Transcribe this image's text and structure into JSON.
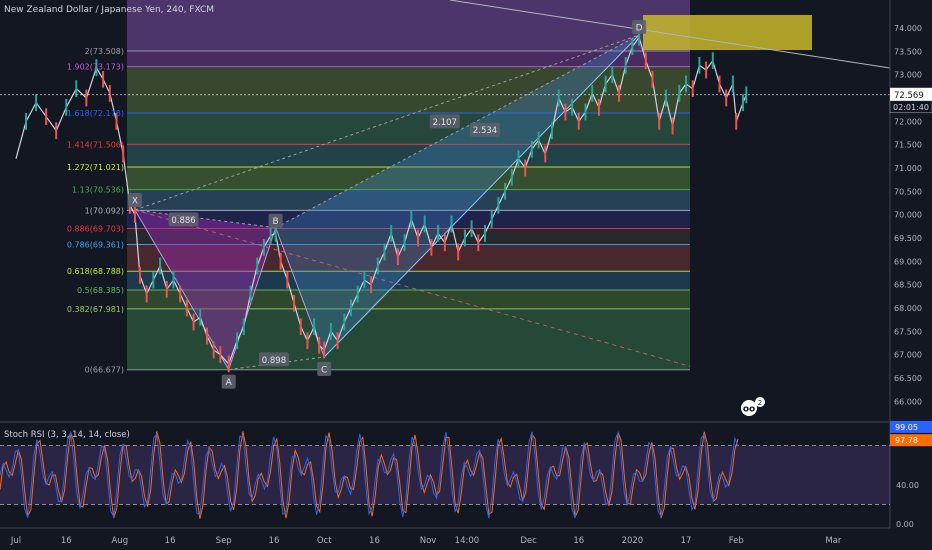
{
  "header": {
    "title": "New Zealand Dollar / Japanese Yen, 240, FXCM"
  },
  "chart_data": {
    "type": "line",
    "title": "New Zealand Dollar / Japanese Yen, 240, FXCM",
    "price_axis": {
      "range": [
        65.6,
        74.6
      ],
      "ticks": [
        "66.000",
        "66.500",
        "67.000",
        "67.500",
        "68.000",
        "68.500",
        "69.000",
        "69.500",
        "70.000",
        "70.500",
        "71.000",
        "71.500",
        "72.000",
        "72.500",
        "73.000",
        "73.500",
        "74.000"
      ]
    },
    "last_price": "72.569",
    "countdown": "02:01:40",
    "time_axis": {
      "labels": [
        {
          "t": "Jul",
          "d": 0
        },
        {
          "t": "16",
          "d": 15
        },
        {
          "t": "Aug",
          "d": 31
        },
        {
          "t": "16",
          "d": 46
        },
        {
          "t": "Sep",
          "d": 62
        },
        {
          "t": "16",
          "d": 77
        },
        {
          "t": "Oct",
          "d": 92
        },
        {
          "t": "16",
          "d": 107
        },
        {
          "t": "Nov",
          "d": 123
        },
        {
          "t": "14:00",
          "d": 134.6
        },
        {
          "t": "Dec",
          "d": 153
        },
        {
          "t": "16",
          "d": 168
        },
        {
          "t": "2020",
          "d": 184
        },
        {
          "t": "17",
          "d": 200
        },
        {
          "t": "Feb",
          "d": 215
        },
        {
          "t": "Mar",
          "d": 244
        }
      ]
    },
    "fib_levels": [
      {
        "label": "2(73.508)",
        "value": 73.508,
        "color": "#9aa0a6"
      },
      {
        "label": "1.902(73.173)",
        "value": 73.173,
        "color": "#c05fd6"
      },
      {
        "label": "1.618(72.178)",
        "value": 72.178,
        "color": "#2962ff"
      },
      {
        "label": "1.414(71.506)",
        "value": 71.506,
        "color": "#f23645"
      },
      {
        "label": "1.272(71.021)",
        "value": 71.021,
        "color": "#c8e63c"
      },
      {
        "label": "1.13(70.536)",
        "value": 70.536,
        "color": "#4caf50"
      },
      {
        "label": "1(70.092)",
        "value": 70.092,
        "color": "#b2b5be"
      },
      {
        "label": "0.886(69.703)",
        "value": 69.703,
        "color": "#f23645"
      },
      {
        "label": "0.786(69.361)",
        "value": 69.361,
        "color": "#42a5f5"
      },
      {
        "label": "0.618(68.788)",
        "value": 68.788,
        "color": "#c8e63c"
      },
      {
        "label": "0.5(68.385)",
        "value": 68.385,
        "color": "#66bb6a"
      },
      {
        "label": "0.382(67.981)",
        "value": 67.981,
        "color": "#9ccc65"
      },
      {
        "label": "0(66.677)",
        "value": 66.677,
        "color": "#9aa0a6"
      }
    ],
    "pattern_points": [
      {
        "label": "X",
        "d": 35.5,
        "price": 70.1
      },
      {
        "label": "A",
        "d": 63.5,
        "price": 66.68
      },
      {
        "label": "B",
        "d": 77.5,
        "price": 69.72
      },
      {
        "label": "C",
        "d": 92,
        "price": 66.95
      },
      {
        "label": "D",
        "d": 186,
        "price": 73.85
      }
    ],
    "pattern_ratios": [
      {
        "label": "0.886",
        "d": 50,
        "price": 69.9
      },
      {
        "label": "0.898",
        "d": 77,
        "price": 66.9
      },
      {
        "label": "2.107",
        "d": 128,
        "price": 72.0
      },
      {
        "label": "2.534",
        "d": 140,
        "price": 71.82
      }
    ],
    "price_series": [
      {
        "d": 0,
        "v": 71.2
      },
      {
        "d": 3,
        "v": 72.0
      },
      {
        "d": 6,
        "v": 72.4
      },
      {
        "d": 9,
        "v": 72.1
      },
      {
        "d": 12,
        "v": 71.8
      },
      {
        "d": 15,
        "v": 72.3
      },
      {
        "d": 18,
        "v": 72.7
      },
      {
        "d": 21,
        "v": 72.5
      },
      {
        "d": 24,
        "v": 73.15
      },
      {
        "d": 26,
        "v": 72.9
      },
      {
        "d": 28,
        "v": 72.6
      },
      {
        "d": 30,
        "v": 72.0
      },
      {
        "d": 32,
        "v": 71.3
      },
      {
        "d": 34,
        "v": 70.2
      },
      {
        "d": 35.5,
        "v": 70.0
      },
      {
        "d": 37,
        "v": 68.7
      },
      {
        "d": 39,
        "v": 68.3
      },
      {
        "d": 41,
        "v": 68.6
      },
      {
        "d": 43,
        "v": 68.9
      },
      {
        "d": 45,
        "v": 68.4
      },
      {
        "d": 47,
        "v": 68.6
      },
      {
        "d": 49,
        "v": 68.3
      },
      {
        "d": 51,
        "v": 68.0
      },
      {
        "d": 53,
        "v": 67.7
      },
      {
        "d": 55,
        "v": 67.8
      },
      {
        "d": 57,
        "v": 67.4
      },
      {
        "d": 59,
        "v": 67.1
      },
      {
        "d": 61,
        "v": 67.0
      },
      {
        "d": 63.5,
        "v": 66.8
      },
      {
        "d": 66,
        "v": 67.3
      },
      {
        "d": 68,
        "v": 67.6
      },
      {
        "d": 70,
        "v": 68.3
      },
      {
        "d": 72,
        "v": 68.9
      },
      {
        "d": 74,
        "v": 69.3
      },
      {
        "d": 76,
        "v": 69.55
      },
      {
        "d": 77.5,
        "v": 69.6
      },
      {
        "d": 79,
        "v": 69.0
      },
      {
        "d": 81,
        "v": 68.6
      },
      {
        "d": 83,
        "v": 68.1
      },
      {
        "d": 85,
        "v": 67.6
      },
      {
        "d": 87,
        "v": 67.3
      },
      {
        "d": 89,
        "v": 67.6
      },
      {
        "d": 90.5,
        "v": 67.2
      },
      {
        "d": 92,
        "v": 67.1
      },
      {
        "d": 94,
        "v": 67.5
      },
      {
        "d": 96,
        "v": 67.3
      },
      {
        "d": 98,
        "v": 67.7
      },
      {
        "d": 100,
        "v": 68.0
      },
      {
        "d": 102,
        "v": 68.3
      },
      {
        "d": 104,
        "v": 68.6
      },
      {
        "d": 106,
        "v": 68.5
      },
      {
        "d": 108,
        "v": 68.9
      },
      {
        "d": 110,
        "v": 69.2
      },
      {
        "d": 112,
        "v": 69.6
      },
      {
        "d": 114,
        "v": 69.1
      },
      {
        "d": 116,
        "v": 69.4
      },
      {
        "d": 118,
        "v": 69.9
      },
      {
        "d": 120,
        "v": 69.5
      },
      {
        "d": 122,
        "v": 69.8
      },
      {
        "d": 124,
        "v": 69.3
      },
      {
        "d": 126,
        "v": 69.6
      },
      {
        "d": 128,
        "v": 69.4
      },
      {
        "d": 130,
        "v": 69.8
      },
      {
        "d": 132,
        "v": 69.2
      },
      {
        "d": 134,
        "v": 69.5
      },
      {
        "d": 136,
        "v": 69.7
      },
      {
        "d": 138,
        "v": 69.4
      },
      {
        "d": 140,
        "v": 69.6
      },
      {
        "d": 142,
        "v": 69.9
      },
      {
        "d": 144,
        "v": 70.2
      },
      {
        "d": 146,
        "v": 70.5
      },
      {
        "d": 148,
        "v": 70.8
      },
      {
        "d": 150,
        "v": 71.2
      },
      {
        "d": 152,
        "v": 71.0
      },
      {
        "d": 154,
        "v": 71.4
      },
      {
        "d": 156,
        "v": 71.6
      },
      {
        "d": 158,
        "v": 71.3
      },
      {
        "d": 160,
        "v": 71.8
      },
      {
        "d": 162,
        "v": 72.5
      },
      {
        "d": 164,
        "v": 72.2
      },
      {
        "d": 166,
        "v": 72.3
      },
      {
        "d": 168,
        "v": 72.0
      },
      {
        "d": 170,
        "v": 72.2
      },
      {
        "d": 172,
        "v": 72.6
      },
      {
        "d": 174,
        "v": 72.3
      },
      {
        "d": 176,
        "v": 72.8
      },
      {
        "d": 178,
        "v": 73.0
      },
      {
        "d": 180,
        "v": 72.6
      },
      {
        "d": 182,
        "v": 73.2
      },
      {
        "d": 184,
        "v": 73.6
      },
      {
        "d": 186,
        "v": 73.8
      },
      {
        "d": 188,
        "v": 73.3
      },
      {
        "d": 190,
        "v": 72.9
      },
      {
        "d": 192,
        "v": 72.0
      },
      {
        "d": 194,
        "v": 72.5
      },
      {
        "d": 196,
        "v": 71.9
      },
      {
        "d": 198,
        "v": 72.6
      },
      {
        "d": 200,
        "v": 72.8
      },
      {
        "d": 202,
        "v": 72.7
      },
      {
        "d": 204,
        "v": 73.2
      },
      {
        "d": 206,
        "v": 73.1
      },
      {
        "d": 208,
        "v": 73.3
      },
      {
        "d": 210,
        "v": 72.8
      },
      {
        "d": 212,
        "v": 72.5
      },
      {
        "d": 214,
        "v": 72.8
      },
      {
        "d": 215,
        "v": 72.0
      },
      {
        "d": 217,
        "v": 72.4
      },
      {
        "d": 218,
        "v": 72.569
      }
    ],
    "stoch_rsi": {
      "label": "Stoch RSI (3, 3, 14, 14, close)",
      "range": [
        0,
        100
      ],
      "bands": [
        20,
        80
      ],
      "ticks": [
        "40.00",
        "0.00"
      ],
      "k_value": "99.05",
      "d_value": "97.78",
      "k_color": "#2962ff",
      "d_color": "#ff6d00"
    },
    "colors": {
      "background": "#131722",
      "candle_up": "#26a69a",
      "candle_down": "#ef5350",
      "pattern_fill": "#9c27b0",
      "d_zone": "#c8b92a"
    }
  },
  "badges": {
    "tv_count": "2"
  }
}
